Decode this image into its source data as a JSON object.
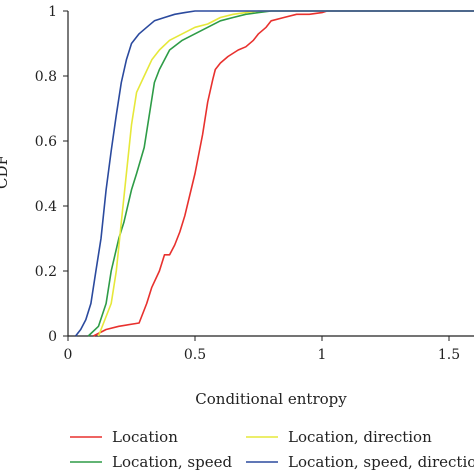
{
  "chart_data": {
    "type": "line",
    "title": "",
    "xlabel": "Conditional entropy",
    "ylabel": "CDF",
    "xlim": [
      0,
      2
    ],
    "ylim": [
      0,
      1
    ],
    "xticks": [
      0,
      0.5,
      1,
      1.5
    ],
    "xtick_labels": [
      "0",
      "0.5",
      "1",
      "1.5"
    ],
    "yticks": [
      0,
      0.2,
      0.4,
      0.6,
      0.8,
      1
    ],
    "ytick_labels": [
      "0",
      "0.2",
      "0.4",
      "0.6",
      "0.8",
      "1"
    ],
    "grid": false,
    "legend_position": "bottom",
    "series": [
      {
        "name": "Location",
        "color": "#e8312e",
        "x": [
          0.1,
          0.15,
          0.2,
          0.28,
          0.31,
          0.33,
          0.36,
          0.38,
          0.4,
          0.42,
          0.44,
          0.46,
          0.5,
          0.53,
          0.55,
          0.57,
          0.58,
          0.6,
          0.63,
          0.67,
          0.7,
          0.73,
          0.75,
          0.78,
          0.8,
          0.85,
          0.9,
          0.95,
          1.0,
          1.02,
          2.0
        ],
        "y": [
          0.0,
          0.02,
          0.03,
          0.04,
          0.1,
          0.15,
          0.2,
          0.25,
          0.25,
          0.28,
          0.32,
          0.37,
          0.5,
          0.62,
          0.72,
          0.79,
          0.82,
          0.84,
          0.86,
          0.88,
          0.89,
          0.91,
          0.93,
          0.95,
          0.97,
          0.98,
          0.99,
          0.99,
          0.995,
          1.0,
          1.0
        ]
      },
      {
        "name": "Location, speed",
        "color": "#2e9c47",
        "x": [
          0.08,
          0.12,
          0.15,
          0.17,
          0.2,
          0.22,
          0.25,
          0.27,
          0.3,
          0.32,
          0.34,
          0.36,
          0.38,
          0.4,
          0.45,
          0.5,
          0.55,
          0.6,
          0.65,
          0.7,
          0.75,
          0.8,
          2.0
        ],
        "y": [
          0.0,
          0.03,
          0.1,
          0.2,
          0.3,
          0.35,
          0.45,
          0.5,
          0.58,
          0.68,
          0.78,
          0.82,
          0.85,
          0.88,
          0.91,
          0.93,
          0.95,
          0.97,
          0.98,
          0.99,
          0.995,
          1.0,
          1.0
        ]
      },
      {
        "name": "Location, direction",
        "color": "#e6e83a",
        "x": [
          0.12,
          0.17,
          0.19,
          0.21,
          0.23,
          0.25,
          0.27,
          0.3,
          0.33,
          0.36,
          0.4,
          0.45,
          0.5,
          0.55,
          0.6,
          0.65,
          0.7,
          0.75,
          2.0
        ],
        "y": [
          0.0,
          0.1,
          0.2,
          0.35,
          0.5,
          0.65,
          0.75,
          0.8,
          0.85,
          0.88,
          0.91,
          0.93,
          0.95,
          0.96,
          0.98,
          0.99,
          0.995,
          1.0,
          1.0
        ]
      },
      {
        "name": "Location, speed, direction",
        "color": "#2b4a9e",
        "x": [
          0.03,
          0.05,
          0.07,
          0.09,
          0.11,
          0.13,
          0.15,
          0.17,
          0.19,
          0.21,
          0.23,
          0.25,
          0.28,
          0.31,
          0.34,
          0.38,
          0.42,
          0.46,
          0.5,
          0.52,
          2.0
        ],
        "y": [
          0.0,
          0.02,
          0.05,
          0.1,
          0.2,
          0.3,
          0.45,
          0.57,
          0.68,
          0.78,
          0.85,
          0.9,
          0.93,
          0.95,
          0.97,
          0.98,
          0.99,
          0.995,
          1.0,
          1.0,
          1.0
        ]
      }
    ]
  }
}
